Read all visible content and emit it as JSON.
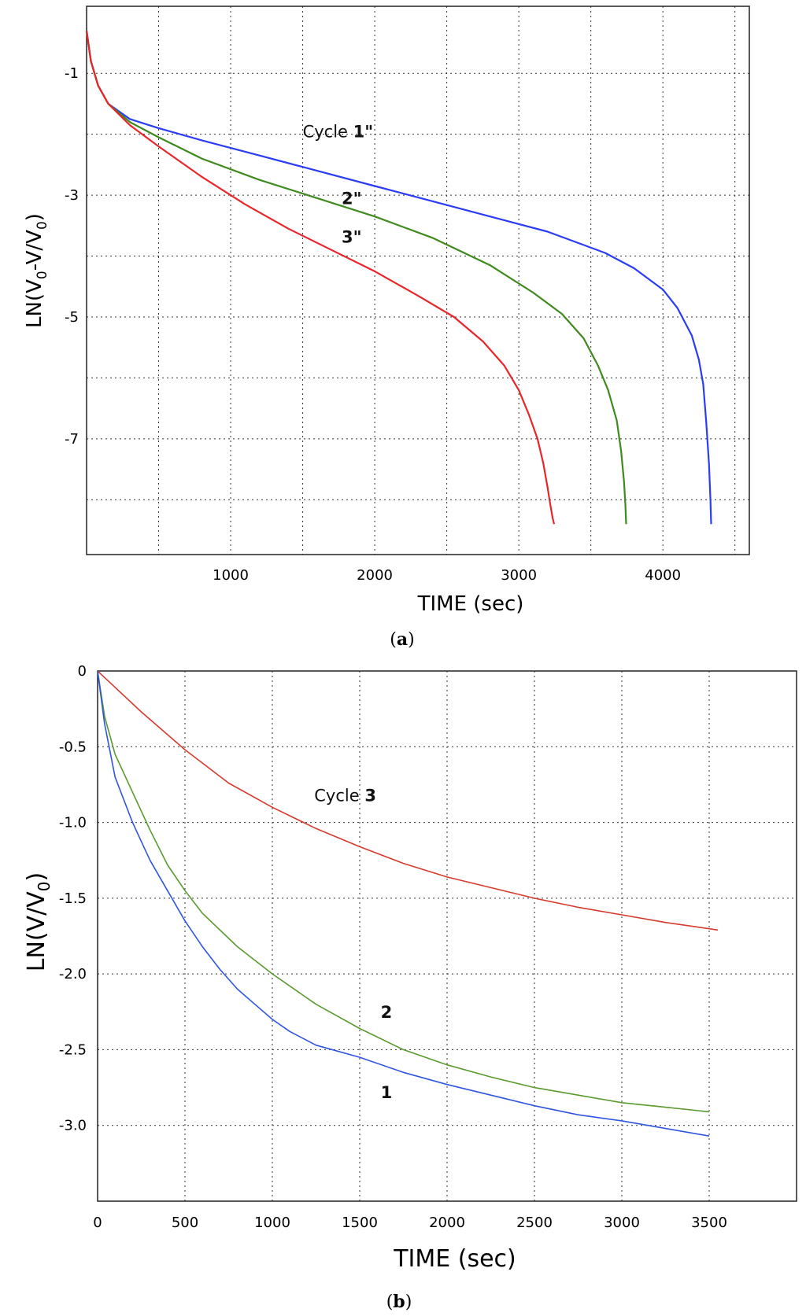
{
  "chart_data": [
    {
      "type": "line",
      "panel_label": "a",
      "xlabel": "TIME (sec)",
      "ylabel": "LN(V0-V/V0)",
      "ylabel_parts": [
        "LN(V",
        "0",
        "-V/V",
        "0",
        ")"
      ],
      "xlim": [
        0,
        4600
      ],
      "ylim": [
        -8.9,
        0.1
      ],
      "xticks": [
        1000,
        2000,
        3000,
        4000
      ],
      "xtick_labels": [
        "1000",
        "2000",
        "3000",
        "4000"
      ],
      "yticks": [
        -1,
        -3,
        -5,
        -7
      ],
      "ytick_labels": [
        "-1",
        "-3",
        "-5",
        "-7"
      ],
      "xgrid": [
        500,
        1000,
        1500,
        2000,
        2500,
        3000,
        3500,
        4000,
        4500
      ],
      "ygrid": [
        -1,
        -2,
        -3,
        -4,
        -5,
        -6,
        -7,
        -8
      ],
      "grid": true,
      "series": [
        {
          "name": "Cycle 1\"",
          "label": "Cycle 1\"",
          "color": "#2a3cf5",
          "x": [
            0,
            30,
            80,
            150,
            300,
            500,
            800,
            1200,
            1600,
            2000,
            2400,
            2800,
            3200,
            3600,
            3800,
            4000,
            4100,
            4200,
            4250,
            4280,
            4300,
            4320,
            4330,
            4335,
            4335
          ],
          "y": [
            -0.3,
            -0.8,
            -1.2,
            -1.5,
            -1.75,
            -1.9,
            -2.1,
            -2.35,
            -2.6,
            -2.85,
            -3.1,
            -3.35,
            -3.6,
            -3.95,
            -4.2,
            -4.55,
            -4.85,
            -5.3,
            -5.7,
            -6.1,
            -6.7,
            -7.4,
            -8.0,
            -8.4,
            -8.4
          ]
        },
        {
          "name": "2\"",
          "label": "2\"",
          "color": "#3f8a1e",
          "x": [
            0,
            30,
            80,
            150,
            300,
            500,
            800,
            1200,
            1600,
            2000,
            2400,
            2800,
            3100,
            3300,
            3450,
            3550,
            3620,
            3680,
            3710,
            3730,
            3740,
            3745,
            3745
          ],
          "y": [
            -0.3,
            -0.8,
            -1.2,
            -1.5,
            -1.8,
            -2.05,
            -2.4,
            -2.75,
            -3.05,
            -3.35,
            -3.7,
            -4.15,
            -4.6,
            -4.95,
            -5.35,
            -5.8,
            -6.2,
            -6.7,
            -7.2,
            -7.7,
            -8.1,
            -8.4,
            -8.4
          ]
        },
        {
          "name": "3\"",
          "label": "3\"",
          "color": "#e8262a",
          "x": [
            0,
            30,
            80,
            150,
            300,
            500,
            800,
            1100,
            1400,
            1700,
            2000,
            2300,
            2550,
            2750,
            2900,
            3000,
            3070,
            3130,
            3170,
            3200,
            3220,
            3235,
            3245,
            3245
          ],
          "y": [
            -0.3,
            -0.8,
            -1.2,
            -1.5,
            -1.85,
            -2.2,
            -2.7,
            -3.15,
            -3.55,
            -3.9,
            -4.25,
            -4.65,
            -5.0,
            -5.4,
            -5.8,
            -6.2,
            -6.6,
            -7.0,
            -7.4,
            -7.8,
            -8.1,
            -8.3,
            -8.4,
            -8.4
          ]
        }
      ],
      "annotations": [
        {
          "text_plain": "Cycle ",
          "text_bold": "1\"",
          "x": 1500,
          "y": -2.05
        },
        {
          "text_plain": "",
          "text_bold": "2\"",
          "x": 1770,
          "y": -3.15
        },
        {
          "text_plain": "",
          "text_bold": "3\"",
          "x": 1770,
          "y": -3.78
        }
      ]
    },
    {
      "type": "line",
      "panel_label": "b",
      "xlabel": "TIME (sec)",
      "ylabel": "LN(V/V0)",
      "ylabel_parts": [
        "LN(V/V",
        "0",
        ")"
      ],
      "xlim": [
        0,
        4000
      ],
      "ylim": [
        -3.5,
        0
      ],
      "xticks": [
        0,
        500,
        1000,
        1500,
        2000,
        2500,
        3000,
        3500
      ],
      "xtick_labels": [
        "0",
        "500",
        "1000",
        "1500",
        "2000",
        "2500",
        "3000",
        "3500"
      ],
      "yticks": [
        0,
        -0.5,
        -1.0,
        -1.5,
        -2.0,
        -2.5,
        -3.0
      ],
      "ytick_labels": [
        "0",
        "-0.5",
        "-1.0",
        "-1.5",
        "-2.0",
        "-2.5",
        "-3.0"
      ],
      "xgrid": [
        500,
        1000,
        1500,
        2000,
        2500,
        3000,
        3500
      ],
      "ygrid": [
        -0.5,
        -1.0,
        -1.5,
        -2.0,
        -2.5,
        -3.0
      ],
      "grid": true,
      "series": [
        {
          "name": "Cycle 3",
          "label": "Cycle 3",
          "color": "#d63a2c",
          "x": [
            0,
            250,
            500,
            750,
            1000,
            1250,
            1500,
            1750,
            2000,
            2250,
            2500,
            2750,
            3000,
            3250,
            3550
          ],
          "y": [
            0,
            -0.27,
            -0.52,
            -0.74,
            -0.9,
            -1.04,
            -1.16,
            -1.27,
            -1.36,
            -1.43,
            -1.5,
            -1.56,
            -1.61,
            -1.66,
            -1.71
          ]
        },
        {
          "name": "2",
          "label": "2",
          "color": "#5a9a2e",
          "x": [
            0,
            40,
            100,
            200,
            300,
            400,
            500,
            600,
            800,
            1000,
            1250,
            1500,
            1750,
            2000,
            2250,
            2500,
            2750,
            3000,
            3250,
            3500
          ],
          "y": [
            0,
            -0.3,
            -0.55,
            -0.8,
            -1.05,
            -1.28,
            -1.45,
            -1.6,
            -1.82,
            -2.0,
            -2.2,
            -2.36,
            -2.5,
            -2.6,
            -2.68,
            -2.75,
            -2.8,
            -2.85,
            -2.88,
            -2.91
          ]
        },
        {
          "name": "1",
          "label": "1",
          "color": "#2f55e0",
          "x": [
            0,
            40,
            100,
            200,
            300,
            400,
            500,
            600,
            700,
            800,
            900,
            1000,
            1100,
            1250,
            1500,
            1750,
            2000,
            2250,
            2500,
            2750,
            3000,
            3250,
            3500
          ],
          "y": [
            0,
            -0.35,
            -0.7,
            -1.0,
            -1.25,
            -1.45,
            -1.65,
            -1.82,
            -1.97,
            -2.1,
            -2.2,
            -2.3,
            -2.38,
            -2.47,
            -2.55,
            -2.65,
            -2.73,
            -2.8,
            -2.87,
            -2.93,
            -2.97,
            -3.02,
            -3.07
          ]
        }
      ],
      "annotations": [
        {
          "text_plain": "Cycle ",
          "text_bold": "3",
          "x": 1240,
          "y": -0.86
        },
        {
          "text_plain": "",
          "text_bold": "2",
          "x": 1620,
          "y": -2.29
        },
        {
          "text_plain": "",
          "text_bold": "1",
          "x": 1620,
          "y": -2.82
        }
      ]
    }
  ]
}
